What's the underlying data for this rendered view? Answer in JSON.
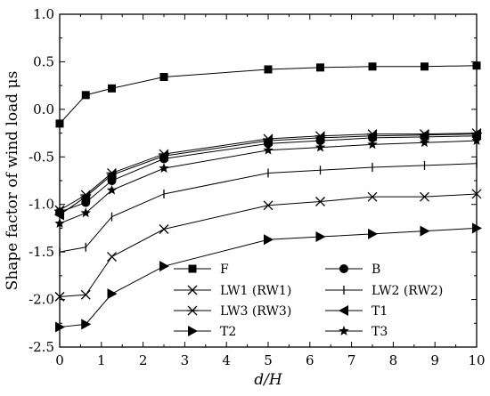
{
  "chart_data": {
    "type": "line",
    "title": "",
    "xlabel": "d/H",
    "ylabel": "Shape factor of wind load μs",
    "xlim": [
      0,
      10
    ],
    "ylim": [
      -2.5,
      1.0
    ],
    "xticks": [
      0,
      1,
      2,
      3,
      4,
      5,
      6,
      7,
      8,
      9,
      10
    ],
    "yticks": [
      1.0,
      0.5,
      0.0,
      -0.5,
      -1.0,
      -1.5,
      -2.0,
      -2.5
    ],
    "ytick_labels": [
      "1.0",
      "0.5",
      "0.0",
      "-0.5",
      "-1.0",
      "-1.5",
      "-2.0",
      "-2.5"
    ],
    "grid": false,
    "legend_position": "bottom-center",
    "x": [
      0,
      0.625,
      1.25,
      2.5,
      5,
      6.25,
      7.5,
      8.75,
      10
    ],
    "series": [
      {
        "name": "F",
        "marker": "square",
        "values": [
          -0.15,
          0.15,
          0.22,
          0.34,
          0.42,
          0.44,
          0.45,
          0.45,
          0.46
        ]
      },
      {
        "name": "B",
        "marker": "circle",
        "values": [
          -1.08,
          -0.98,
          -0.75,
          -0.52,
          -0.36,
          -0.33,
          -0.3,
          -0.29,
          -0.28
        ]
      },
      {
        "name": "LW1 (RW1)",
        "marker": "x",
        "values": [
          -1.97,
          -1.95,
          -1.55,
          -1.26,
          -1.01,
          -0.97,
          -0.92,
          -0.92,
          -0.89
        ]
      },
      {
        "name": "LW2 (RW2)",
        "marker": "plus",
        "values": [
          -1.5,
          -1.45,
          -1.13,
          -0.89,
          -0.67,
          -0.64,
          -0.61,
          -0.59,
          -0.57
        ]
      },
      {
        "name": "LW3 (RW3)",
        "marker": "asterisk",
        "values": [
          -1.06,
          -0.9,
          -0.67,
          -0.47,
          -0.31,
          -0.28,
          -0.26,
          -0.26,
          -0.25
        ]
      },
      {
        "name": "T1",
        "marker": "triangle-left",
        "values": [
          -1.11,
          -0.92,
          -0.69,
          -0.49,
          -0.33,
          -0.3,
          -0.28,
          -0.27,
          -0.26
        ]
      },
      {
        "name": "T2",
        "marker": "triangle-right",
        "values": [
          -2.29,
          -2.26,
          -1.94,
          -1.65,
          -1.37,
          -1.34,
          -1.31,
          -1.28,
          -1.25
        ]
      },
      {
        "name": "T3",
        "marker": "star",
        "values": [
          -1.2,
          -1.09,
          -0.85,
          -0.62,
          -0.43,
          -0.4,
          -0.37,
          -0.35,
          -0.33
        ]
      }
    ]
  }
}
